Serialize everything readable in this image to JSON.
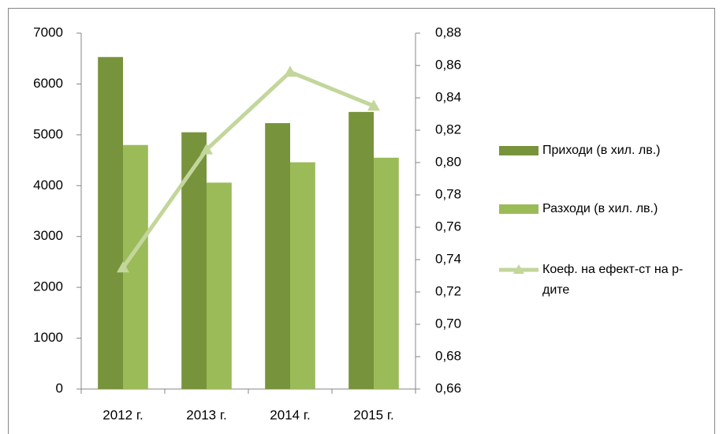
{
  "chart_data": {
    "type": "bar",
    "categories": [
      "2012 г.",
      "2013 г.",
      "2014 г.",
      "2015 г."
    ],
    "series": [
      {
        "name": "Приходи (в хил. лв.)",
        "color": "#77933c",
        "values": [
          6530,
          5050,
          5230,
          5450
        ]
      },
      {
        "name": "Разходи (в хил. лв.)",
        "color": "#9bbb59",
        "values": [
          4800,
          4060,
          4460,
          4550
        ]
      },
      {
        "name": "Коеф. на ефект-ст на р-дите",
        "color": "#c3d69b",
        "type": "line",
        "axis": "y2",
        "marker": "triangle",
        "values": [
          0.735,
          0.808,
          0.856,
          0.835
        ]
      }
    ],
    "ylim": [
      0,
      7000
    ],
    "yticks": [
      0,
      1000,
      2000,
      3000,
      4000,
      5000,
      6000,
      7000
    ],
    "y2lim": [
      0.66,
      0.88
    ],
    "y2ticks": [
      {
        "value": 0.66,
        "label": "0,66"
      },
      {
        "value": 0.68,
        "label": "0,68"
      },
      {
        "value": 0.7,
        "label": "0,70"
      },
      {
        "value": 0.72,
        "label": "0,72"
      },
      {
        "value": 0.74,
        "label": "0,74"
      },
      {
        "value": 0.76,
        "label": "0,76"
      },
      {
        "value": 0.78,
        "label": "0,78"
      },
      {
        "value": 0.8,
        "label": "0,80"
      },
      {
        "value": 0.82,
        "label": "0,82"
      },
      {
        "value": 0.84,
        "label": "0,84"
      },
      {
        "value": 0.86,
        "label": "0,86"
      },
      {
        "value": 0.88,
        "label": "0,88"
      }
    ],
    "grid": false,
    "legend": "right"
  }
}
